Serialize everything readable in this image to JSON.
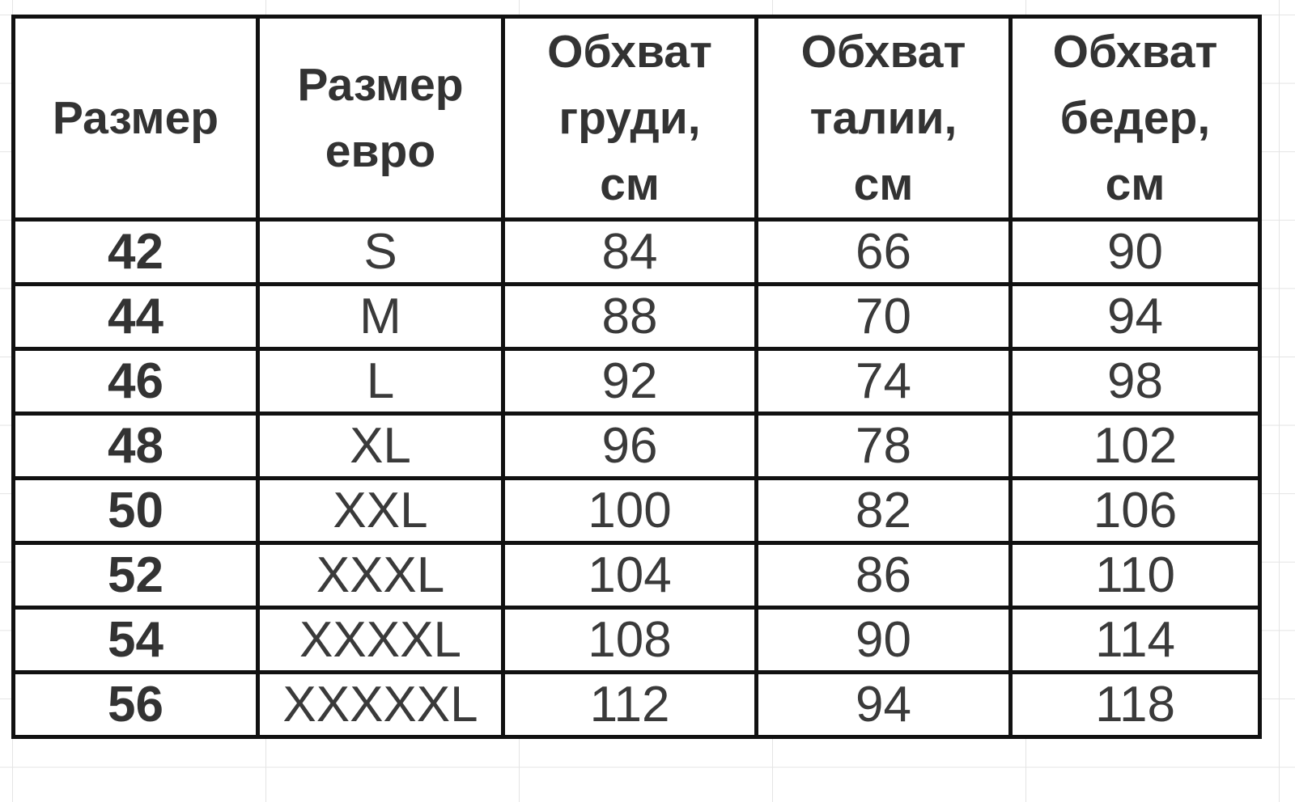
{
  "table": {
    "headers": [
      [
        "Размер"
      ],
      [
        "Размер",
        "евро"
      ],
      [
        "Обхват",
        "груди,",
        "см"
      ],
      [
        "Обхват",
        "талии,",
        "см"
      ],
      [
        "Обхват",
        "бедер,",
        "см"
      ]
    ],
    "rows": [
      [
        "42",
        "S",
        "84",
        "66",
        "90"
      ],
      [
        "44",
        "M",
        "88",
        "70",
        "94"
      ],
      [
        "46",
        "L",
        "92",
        "74",
        "98"
      ],
      [
        "48",
        "XL",
        "96",
        "78",
        "102"
      ],
      [
        "50",
        "XXL",
        "100",
        "82",
        "106"
      ],
      [
        "52",
        "XXXL",
        "104",
        "86",
        "110"
      ],
      [
        "54",
        "XXXXL",
        "108",
        "90",
        "114"
      ],
      [
        "56",
        "XXXXXL",
        "112",
        "94",
        "118"
      ]
    ]
  }
}
